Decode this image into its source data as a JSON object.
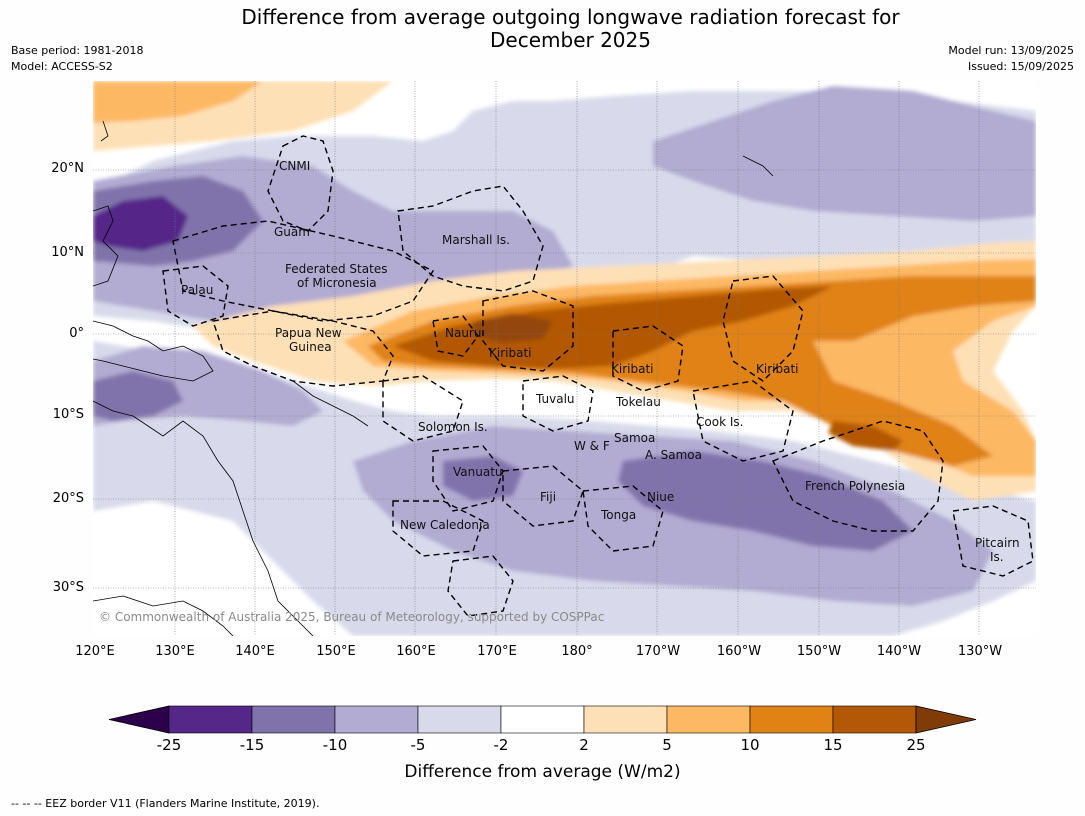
{
  "title_line1": "Difference from average outgoing longwave radiation forecast for",
  "title_line2": "December 2025",
  "base_period": "Base period: 1981-2018",
  "model": "Model: ACCESS-S2",
  "model_run": "Model run: 13/09/2025",
  "issued": "Issued: 15/09/2025",
  "lon_labels": [
    "120°E",
    "130°E",
    "140°E",
    "150°E",
    "160°E",
    "170°E",
    "180°",
    "170°W",
    "160°W",
    "150°W",
    "140°W",
    "130°W"
  ],
  "lat_labels": [
    "20°N",
    "10°N",
    "0°",
    "10°S",
    "20°S",
    "30°S"
  ],
  "region_labels": {
    "cnmi": "CNMI",
    "guam": "Guam",
    "marshall": "Marshall Is.",
    "fsm1": "Federated States",
    "fsm2": "of Micronesia",
    "palau": "Palau",
    "png1": "Papua New",
    "png2": "Guinea",
    "nauru": "Nauru",
    "kiribati_w": "Kiribati",
    "kiribati_c": "Kiribati",
    "kiribati_e": "Kiribati",
    "tuvalu": "Tuvalu",
    "tokelau": "Tokelau",
    "cook": "Cook Is.",
    "solomon": "Solomon Is.",
    "wf": "W & F",
    "samoa": "Samoa",
    "asamoa": "A. Samoa",
    "vanuatu": "Vanuatu",
    "fiji": "Fiji",
    "niue": "Niue",
    "tonga": "Tonga",
    "french_poly": "French Polynesia",
    "newcal": "New Caledonia",
    "pitcairn1": "Pitcairn",
    "pitcairn2": "Is."
  },
  "copyright": "© Commonwealth of Australia 2025, Bureau of Meteorology, supported by COSPPac",
  "colorbar": {
    "ticks": [
      "-25",
      "-15",
      "-10",
      "-5",
      "-2",
      "2",
      "5",
      "10",
      "15",
      "25"
    ],
    "colors": [
      "#2d004b",
      "#542788",
      "#8073ac",
      "#b2abd2",
      "#d8daeb",
      "#ffffff",
      "#fee0b6",
      "#fdb863",
      "#e08214",
      "#b35806",
      "#7f3b08"
    ],
    "label": "Difference from average (W/m2)"
  },
  "footer": "--  --  -- EEZ border V11 (Flanders Marine Institute, 2019)."
}
